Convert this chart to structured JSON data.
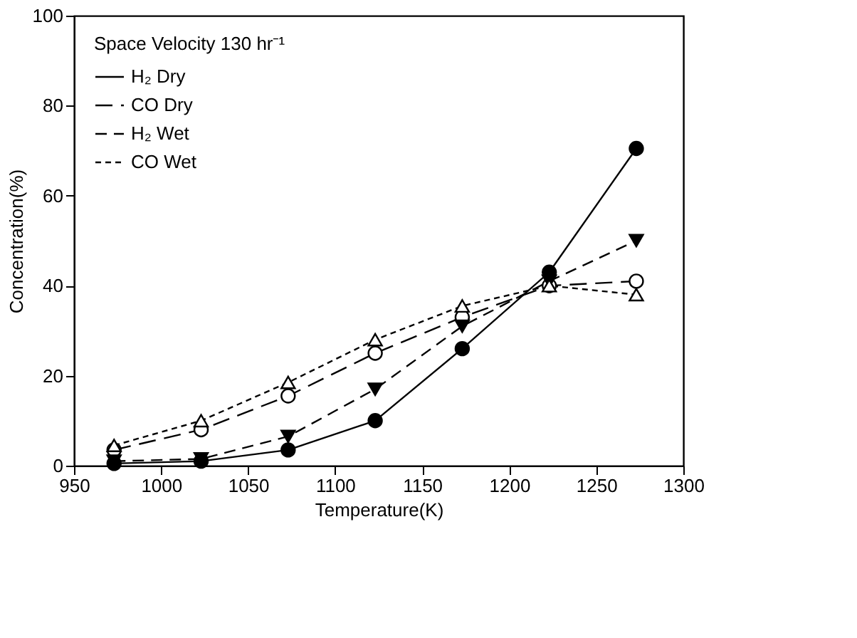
{
  "chart_data": {
    "type": "line",
    "xlabel": "Temperature(K)",
    "ylabel": "Concentration(%)",
    "legend_title": "Space Velocity 130 hr⁻¹",
    "x": [
      973,
      1023,
      1073,
      1123,
      1173,
      1223,
      1273
    ],
    "series": [
      {
        "name": "H₂  Dry",
        "color": "#000000",
        "marker": "circle",
        "line_style": "solid",
        "values": [
          0.5,
          1,
          3.5,
          10,
          26,
          43,
          70.5
        ]
      },
      {
        "name": "CO  Dry",
        "color": "#000000",
        "marker": "circle-open",
        "line_style": "dashed",
        "values": [
          3.5,
          8,
          15.5,
          25,
          33,
          40,
          41
        ]
      },
      {
        "name": "H₂  Wet",
        "color": "#000000",
        "marker": "triangle-down",
        "line_style": "dashed",
        "values": [
          1,
          1.5,
          6.5,
          17,
          31,
          41,
          50
        ]
      },
      {
        "name": "CO  Wet",
        "color": "#000000",
        "marker": "triangle-open",
        "line_style": "dashed",
        "values": [
          4.5,
          10,
          18.5,
          28,
          35.5,
          40,
          38
        ]
      }
    ],
    "xlim": [
      950,
      1300
    ],
    "xticks": [
      950,
      1000,
      1050,
      1100,
      1150,
      1200,
      1250,
      1300
    ],
    "ylim": [
      0,
      100
    ],
    "yticks": [
      0,
      20,
      40,
      60,
      80,
      100
    ],
    "grid": false,
    "legend": "top left"
  }
}
